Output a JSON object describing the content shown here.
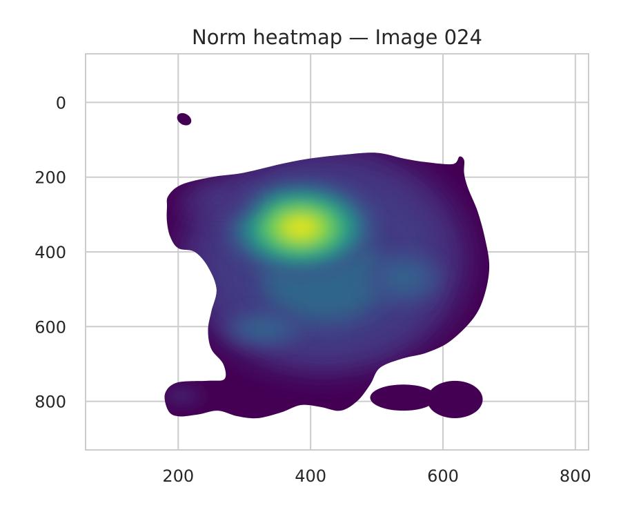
{
  "chart_data": {
    "type": "heatmap",
    "subtype": "kde-density-contour",
    "title": "Norm heatmap — Image 024",
    "xlabel": "",
    "ylabel": "",
    "xlim": [
      60,
      820
    ],
    "ylim": [
      930,
      -130
    ],
    "y_inverted": true,
    "grid": true,
    "colormap": "viridis",
    "x_ticks": [
      200,
      400,
      600,
      800
    ],
    "y_ticks": [
      0,
      200,
      400,
      600,
      800
    ],
    "density_peaks": [
      {
        "x": 385,
        "y": 335,
        "relative_intensity": 1.0
      },
      {
        "x": 540,
        "y": 470,
        "relative_intensity": 0.35
      },
      {
        "x": 330,
        "y": 605,
        "relative_intensity": 0.35
      },
      {
        "x": 260,
        "y": 260,
        "relative_intensity": 0.15
      },
      {
        "x": 205,
        "y": 785,
        "relative_intensity": 0.08
      }
    ],
    "colors": {
      "low": "#440154",
      "mid": "#31688e",
      "high_mid": "#35b779",
      "high": "#fde725",
      "grid": "#cccccc",
      "axis_edge": "#cccccc"
    }
  }
}
